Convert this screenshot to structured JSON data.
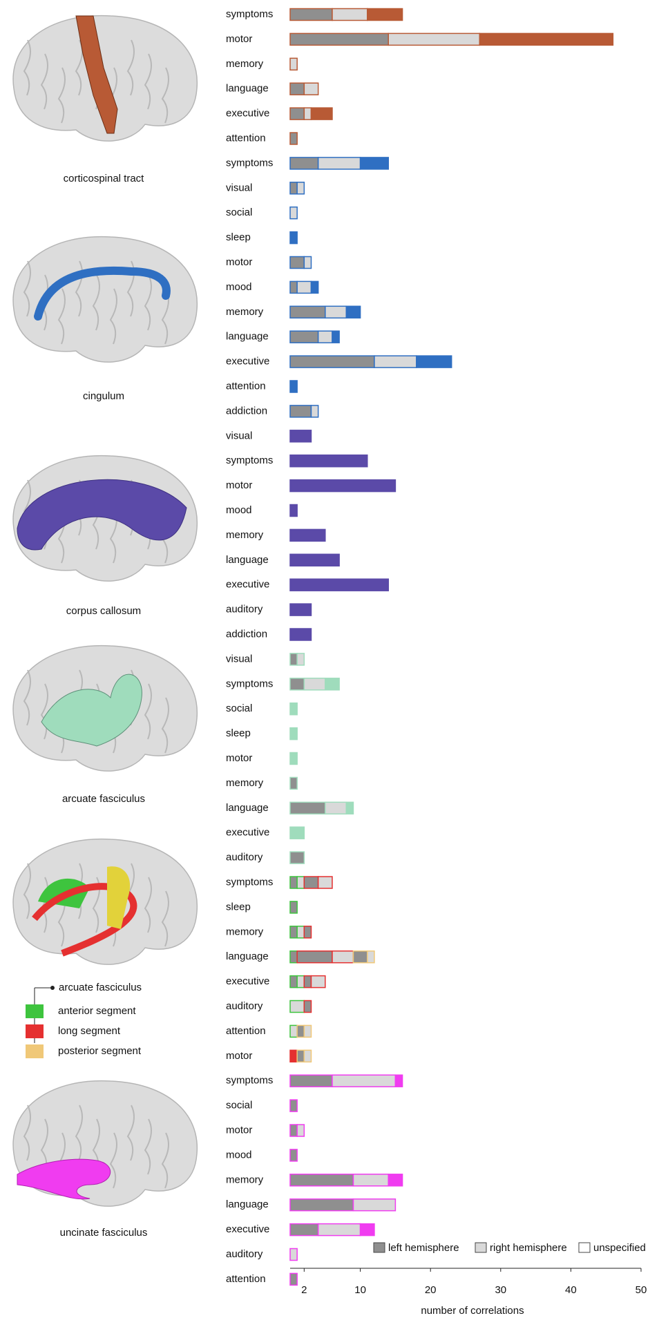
{
  "chart_data": {
    "type": "bar",
    "orientation": "horizontal",
    "x_label": "number of correlations",
    "xlim": [
      0,
      50
    ],
    "xticks": [
      2,
      10,
      20,
      30,
      40,
      50
    ],
    "hemispheres": [
      {
        "name": "left hemisphere",
        "color": "#8f8f8f"
      },
      {
        "name": "right hemisphere",
        "color": "#d9d9d9"
      },
      {
        "name": "unspecified",
        "color": "#ffffff"
      }
    ],
    "groups": [
      {
        "name": "corticospinal tract",
        "color": "#b85a35",
        "categories": [
          "symptoms",
          "motor",
          "memory",
          "language",
          "executive",
          "attention"
        ],
        "left": [
          6,
          14,
          0,
          2,
          2,
          1
        ],
        "right": [
          5,
          13,
          1,
          2,
          1,
          0
        ],
        "unspecified": [
          5,
          19,
          0,
          0,
          3,
          0
        ]
      },
      {
        "name": "cingulum",
        "color": "#2f6fc2",
        "categories": [
          "symptoms",
          "visual",
          "social",
          "sleep",
          "motor",
          "mood",
          "memory",
          "language",
          "executive",
          "attention",
          "addiction"
        ],
        "left": [
          4,
          1,
          0,
          0,
          2,
          1,
          5,
          4,
          12,
          0,
          3
        ],
        "right": [
          6,
          1,
          1,
          0,
          1,
          2,
          3,
          2,
          6,
          0,
          1
        ],
        "unspecified": [
          4,
          0,
          0,
          1,
          0,
          1,
          2,
          1,
          5,
          1,
          0
        ]
      },
      {
        "name": "corpus callosum",
        "color": "#5b4aa8",
        "categories": [
          "visual",
          "symptoms",
          "motor",
          "mood",
          "memory",
          "language",
          "executive",
          "auditory",
          "addiction"
        ],
        "left": [
          0,
          0,
          0,
          0,
          0,
          0,
          0,
          0,
          0
        ],
        "right": [
          0,
          0,
          0,
          0,
          0,
          0,
          0,
          0,
          0
        ],
        "unspecified": [
          3,
          11,
          15,
          1,
          5,
          7,
          14,
          3,
          3
        ]
      },
      {
        "name": "arcuate fasciculus",
        "color": "#9fdcbc",
        "categories": [
          "visual",
          "symptoms",
          "social",
          "sleep",
          "motor",
          "memory",
          "language",
          "executive",
          "auditory"
        ],
        "left": [
          1,
          2,
          0,
          0,
          0,
          1,
          5,
          0,
          2
        ],
        "right": [
          1,
          3,
          0,
          0,
          0,
          0,
          3,
          0,
          0
        ],
        "unspecified": [
          0,
          2,
          1,
          1,
          1,
          0,
          1,
          2,
          0
        ]
      },
      {
        "name": "arcuate fasciculus",
        "categories": [
          "symptoms",
          "sleep",
          "memory",
          "language",
          "executive",
          "auditory",
          "attention",
          "motor"
        ],
        "segments": [
          {
            "name": "anterior segment",
            "color": "#3ec43e",
            "left": [
              1,
              1,
              1,
              1,
              1,
              0,
              0,
              0
            ],
            "right": [
              1,
              0,
              1,
              0,
              1,
              2,
              1,
              0
            ],
            "unspecified": [
              0,
              0,
              0,
              0,
              0,
              0,
              0,
              0
            ]
          },
          {
            "name": "long segment",
            "color": "#e53030",
            "left": [
              2,
              0,
              1,
              5,
              1,
              1,
              0,
              0
            ],
            "right": [
              2,
              0,
              0,
              3,
              2,
              0,
              0,
              0
            ],
            "unspecified": [
              0,
              0,
              0,
              0,
              0,
              0,
              0,
              1
            ]
          },
          {
            "name": "posterior segment",
            "color": "#f0c878",
            "left": [
              0,
              0,
              0,
              2,
              0,
              0,
              1,
              1
            ],
            "right": [
              0,
              0,
              0,
              1,
              0,
              0,
              1,
              1
            ],
            "unspecified": [
              0,
              0,
              0,
              0,
              0,
              0,
              0,
              0
            ]
          }
        ]
      },
      {
        "name": "uncinate fasciculus",
        "color": "#f03cf0",
        "categories": [
          "symptoms",
          "social",
          "motor",
          "mood",
          "memory",
          "language",
          "executive",
          "auditory",
          "attention"
        ],
        "left": [
          6,
          1,
          1,
          1,
          9,
          9,
          4,
          0,
          1
        ],
        "right": [
          9,
          0,
          1,
          0,
          5,
          6,
          6,
          1,
          0
        ],
        "unspecified": [
          1,
          0,
          0,
          0,
          2,
          0,
          2,
          0,
          0
        ]
      }
    ]
  }
}
